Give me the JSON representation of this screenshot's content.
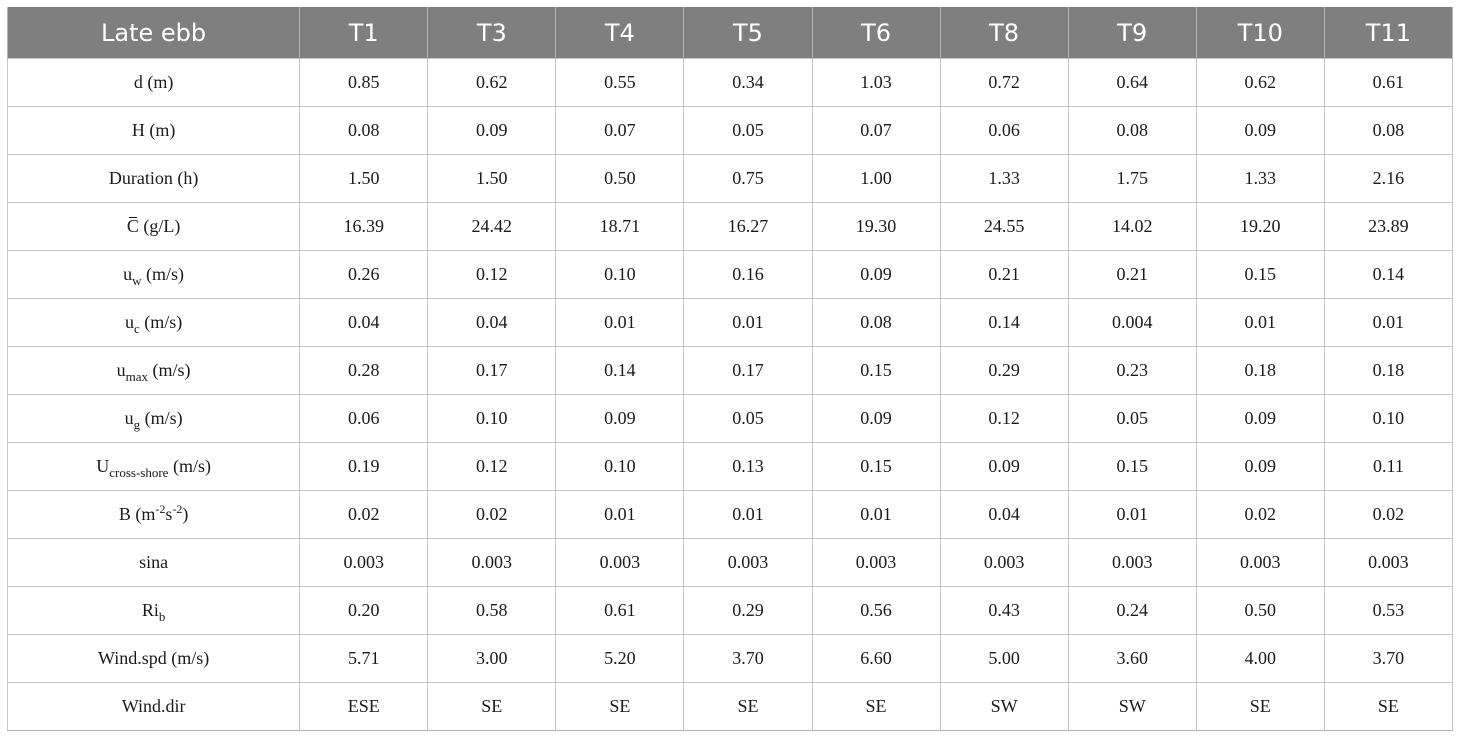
{
  "table": {
    "corner_label": "Late ebb",
    "columns": [
      "T1",
      "T3",
      "T4",
      "T5",
      "T6",
      "T8",
      "T9",
      "T10",
      "T11"
    ],
    "rows": [
      {
        "label": {
          "pre": "d",
          "unit": " (m)"
        },
        "values": [
          "0.85",
          "0.62",
          "0.55",
          "0.34",
          "1.03",
          "0.72",
          "0.64",
          "0.62",
          "0.61"
        ]
      },
      {
        "label": {
          "pre": "H",
          "unit": " (m)"
        },
        "values": [
          "0.08",
          "0.09",
          "0.07",
          "0.05",
          "0.07",
          "0.06",
          "0.08",
          "0.09",
          "0.08"
        ]
      },
      {
        "label": {
          "pre": "Duration",
          "unit": " (h)"
        },
        "values": [
          "1.50",
          "1.50",
          "0.50",
          "0.75",
          "1.00",
          "1.33",
          "1.75",
          "1.33",
          "2.16"
        ]
      },
      {
        "label": {
          "pre": "C",
          "unit": " (g/L)"
        },
        "values": [
          "16.39",
          "24.42",
          "18.71",
          "16.27",
          "19.30",
          "24.55",
          "14.02",
          "19.20",
          "23.89"
        ]
      },
      {
        "label": {
          "pre": "u",
          "sub": "w",
          "unit": " (m/s)"
        },
        "values": [
          "0.26",
          "0.12",
          "0.10",
          "0.16",
          "0.09",
          "0.21",
          "0.21",
          "0.15",
          "0.14"
        ]
      },
      {
        "label": {
          "pre": "u",
          "sub": "c",
          "unit": " (m/s)"
        },
        "values": [
          "0.04",
          "0.04",
          "0.01",
          "0.01",
          "0.08",
          "0.14",
          "0.004",
          "0.01",
          "0.01"
        ]
      },
      {
        "label": {
          "pre": "u",
          "sub": "max",
          "unit": " (m/s)"
        },
        "values": [
          "0.28",
          "0.17",
          "0.14",
          "0.17",
          "0.15",
          "0.29",
          "0.23",
          "0.18",
          "0.18"
        ]
      },
      {
        "label": {
          "pre": "u",
          "sub": "g",
          "unit": " (m/s)"
        },
        "values": [
          "0.06",
          "0.10",
          "0.09",
          "0.05",
          "0.09",
          "0.12",
          "0.05",
          "0.09",
          "0.10"
        ]
      },
      {
        "label": {
          "pre": "U",
          "sub": "cross-shore",
          "unit": " (m/s)"
        },
        "values": [
          "0.19",
          "0.12",
          "0.10",
          "0.13",
          "0.15",
          "0.09",
          "0.15",
          "0.09",
          "0.11"
        ]
      },
      {
        "label": {
          "pre": "B (m",
          "sup1": "-2",
          "mid": "s",
          "sup2": "-2",
          "post": ")"
        },
        "values": [
          "0.02",
          "0.02",
          "0.01",
          "0.01",
          "0.01",
          "0.04",
          "0.01",
          "0.02",
          "0.02"
        ]
      },
      {
        "label": {
          "pre": "sina"
        },
        "values": [
          "0.003",
          "0.003",
          "0.003",
          "0.003",
          "0.003",
          "0.003",
          "0.003",
          "0.003",
          "0.003"
        ]
      },
      {
        "label": {
          "pre": "Ri",
          "sub": "b"
        },
        "values": [
          "0.20",
          "0.58",
          "0.61",
          "0.29",
          "0.56",
          "0.43",
          "0.24",
          "0.50",
          "0.53"
        ]
      },
      {
        "label": {
          "pre": "Wind.spd",
          "unit": " (m/s)"
        },
        "values": [
          "5.71",
          "3.00",
          "5.20",
          "3.70",
          "6.60",
          "5.00",
          "3.60",
          "4.00",
          "3.70"
        ]
      },
      {
        "label": {
          "pre": "Wind.dir"
        },
        "values": [
          "ESE",
          "SE",
          "SE",
          "SE",
          "SE",
          "SW",
          "SW",
          "SE",
          "SE"
        ]
      }
    ]
  }
}
